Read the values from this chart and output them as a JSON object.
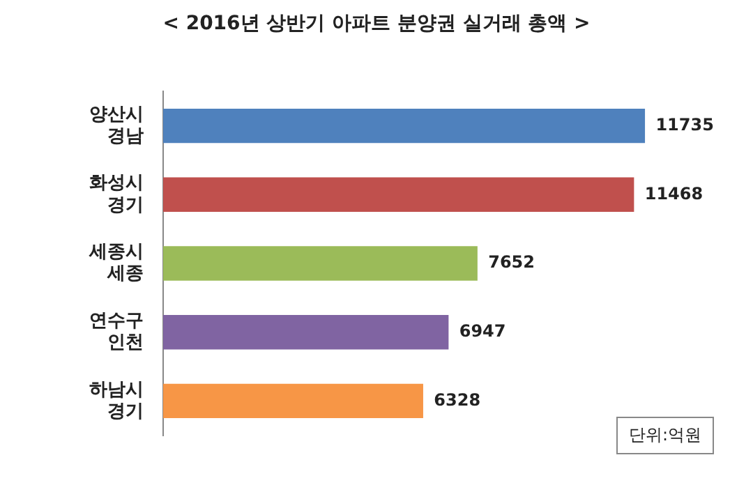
{
  "chart_data": {
    "type": "bar",
    "orientation": "horizontal",
    "title": "< 2016년 상반기 아파트 분양권 실거래 총액 >",
    "categories": [
      "양산시\n경남",
      "화성시\n경기",
      "세종시\n세종",
      "연수구\n인천",
      "하남시\n경기"
    ],
    "values": [
      11735,
      11468,
      7652,
      6947,
      6328
    ],
    "colors": [
      "#4f81bd",
      "#c0504d",
      "#9bbb59",
      "#8064a2",
      "#f79646"
    ],
    "data_labels": true,
    "grid": false,
    "legend": false,
    "tick_labels": "y",
    "annotations": [
      "단위:억원"
    ]
  }
}
